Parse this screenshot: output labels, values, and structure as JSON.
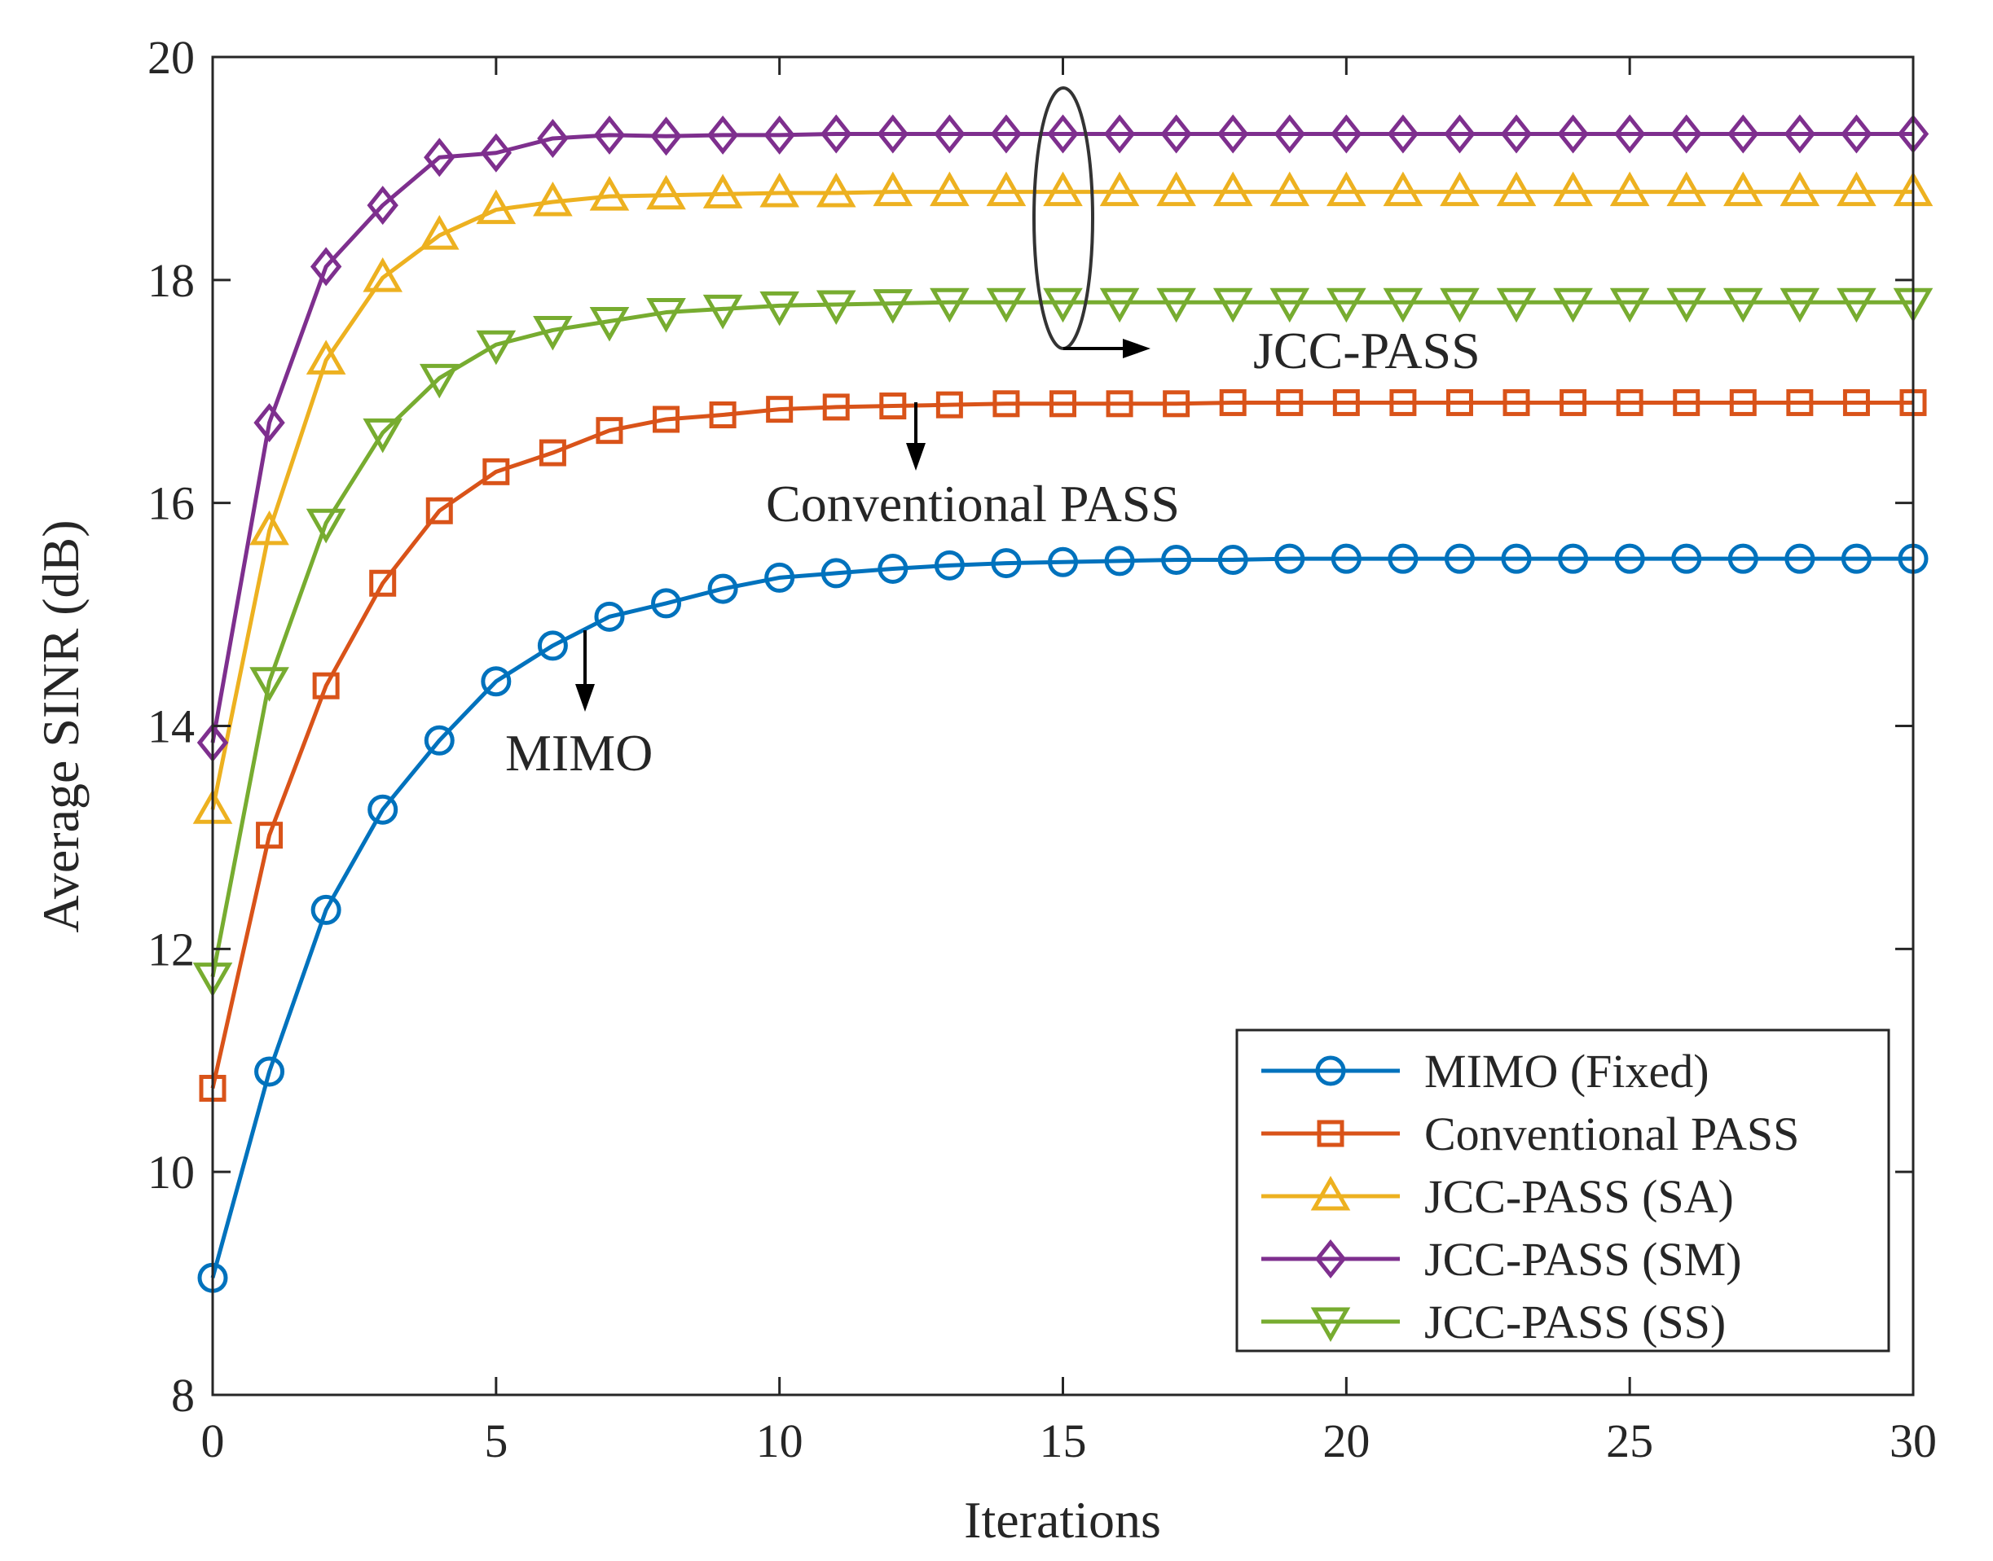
{
  "chart_data": {
    "type": "line",
    "xlabel": "Iterations",
    "ylabel": "Average SINR (dB)",
    "xlim": [
      0,
      30
    ],
    "ylim": [
      8,
      20
    ],
    "xticks": [
      0,
      5,
      10,
      15,
      20,
      25,
      30
    ],
    "yticks": [
      8,
      10,
      12,
      14,
      16,
      18,
      20
    ],
    "grid": false,
    "legend_position": "bottom-right",
    "x": [
      0,
      1,
      2,
      3,
      4,
      5,
      6,
      7,
      8,
      9,
      10,
      11,
      12,
      13,
      14,
      15,
      16,
      17,
      18,
      19,
      20,
      21,
      22,
      23,
      24,
      25,
      26,
      27,
      28,
      29,
      30
    ],
    "series": [
      {
        "name": "MIMO (Fixed)",
        "color": "#0072BD",
        "marker": "circle",
        "values": [
          9.05,
          10.9,
          12.35,
          13.25,
          13.87,
          14.4,
          14.72,
          14.98,
          15.1,
          15.23,
          15.33,
          15.37,
          15.41,
          15.44,
          15.46,
          15.47,
          15.48,
          15.49,
          15.49,
          15.5,
          15.5,
          15.5,
          15.5,
          15.5,
          15.5,
          15.5,
          15.5,
          15.5,
          15.5,
          15.5,
          15.5
        ]
      },
      {
        "name": "Conventional PASS",
        "color": "#D95319",
        "marker": "square",
        "values": [
          10.75,
          13.02,
          14.36,
          15.28,
          15.93,
          16.28,
          16.45,
          16.65,
          16.75,
          16.79,
          16.84,
          16.86,
          16.87,
          16.88,
          16.89,
          16.89,
          16.89,
          16.89,
          16.9,
          16.9,
          16.9,
          16.9,
          16.9,
          16.9,
          16.9,
          16.9,
          16.9,
          16.9,
          16.9,
          16.9,
          16.9
        ]
      },
      {
        "name": "JCC-PASS (SA)",
        "color": "#EDB120",
        "marker": "triangle-up",
        "values": [
          13.25,
          15.75,
          17.28,
          18.02,
          18.4,
          18.63,
          18.7,
          18.75,
          18.76,
          18.77,
          18.78,
          18.78,
          18.79,
          18.79,
          18.79,
          18.79,
          18.79,
          18.79,
          18.79,
          18.79,
          18.79,
          18.79,
          18.79,
          18.79,
          18.79,
          18.79,
          18.79,
          18.79,
          18.79,
          18.79,
          18.79
        ]
      },
      {
        "name": "JCC-PASS (SM)",
        "color": "#7E2F8E",
        "marker": "diamond",
        "values": [
          13.85,
          16.72,
          18.12,
          18.67,
          19.1,
          19.14,
          19.27,
          19.3,
          19.29,
          19.3,
          19.3,
          19.31,
          19.31,
          19.31,
          19.31,
          19.31,
          19.31,
          19.31,
          19.31,
          19.31,
          19.31,
          19.31,
          19.31,
          19.31,
          19.31,
          19.31,
          19.31,
          19.31,
          19.31,
          19.31,
          19.31
        ]
      },
      {
        "name": "JCC-PASS (SS)",
        "color": "#77AC30",
        "marker": "triangle-down",
        "values": [
          11.75,
          14.4,
          15.82,
          16.63,
          17.12,
          17.42,
          17.55,
          17.63,
          17.71,
          17.74,
          17.77,
          17.78,
          17.79,
          17.8,
          17.8,
          17.8,
          17.8,
          17.8,
          17.8,
          17.8,
          17.8,
          17.8,
          17.8,
          17.8,
          17.8,
          17.8,
          17.8,
          17.8,
          17.8,
          17.8,
          17.8
        ]
      }
    ],
    "annotations": [
      {
        "id": "jcc",
        "text": "JCC-PASS"
      },
      {
        "id": "conv",
        "text": "Conventional PASS"
      },
      {
        "id": "mimo",
        "text": "MIMO"
      }
    ]
  }
}
